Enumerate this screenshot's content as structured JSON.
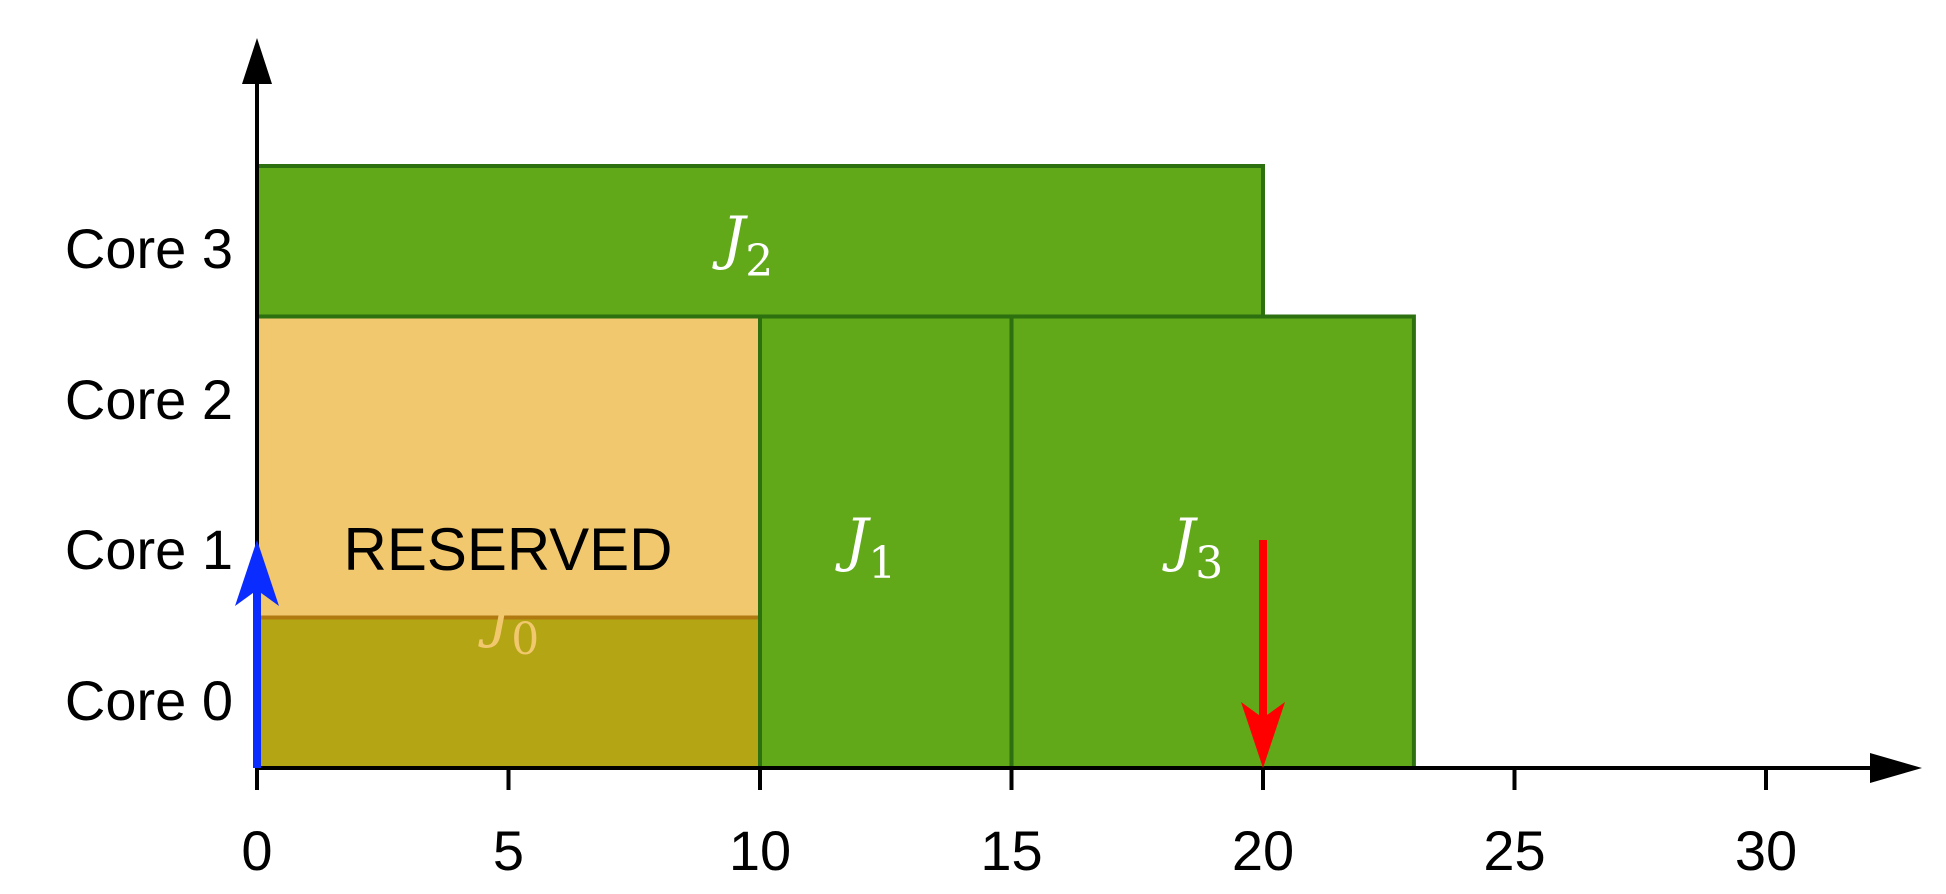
{
  "diagram": {
    "type": "gantt-schedule",
    "time_axis": {
      "min": 0,
      "max": 32,
      "ticks": [
        {
          "value": 0,
          "label": "0"
        },
        {
          "value": 5,
          "label": "5"
        },
        {
          "value": 10,
          "label": "10"
        },
        {
          "value": 15,
          "label": "15"
        },
        {
          "value": 20,
          "label": "20"
        },
        {
          "value": 25,
          "label": "25"
        },
        {
          "value": 30,
          "label": "30"
        }
      ]
    },
    "cores": [
      {
        "index": 0,
        "label": "Core 0"
      },
      {
        "index": 1,
        "label": "Core 1"
      },
      {
        "index": 2,
        "label": "Core 2"
      },
      {
        "index": 3,
        "label": "Core 3"
      }
    ],
    "reserved": {
      "label": "RESERVED",
      "start": 0,
      "end": 10,
      "core_start": 1,
      "core_end": 2,
      "fill": "#f2c86e",
      "stroke": "#b07a10"
    },
    "jobs": [
      {
        "name": "J",
        "subscript": "0",
        "start": 0,
        "end": 10,
        "core_start": 0,
        "core_end": 1,
        "fill": "#b3a513",
        "stroke": "#9a7a10",
        "text_color": "#f2c86e"
      },
      {
        "name": "J",
        "subscript": "1",
        "start": 10,
        "end": 15,
        "core_start": 0,
        "core_end": 2,
        "fill": "#61a918",
        "stroke": "#2c7010",
        "text_color": "#ffffff"
      },
      {
        "name": "J",
        "subscript": "2",
        "start": 0,
        "end": 20,
        "core_start": 3,
        "core_end": 3,
        "fill": "#61a918",
        "stroke": "#2c7010",
        "text_color": "#ffffff"
      },
      {
        "name": "J",
        "subscript": "3",
        "start": 15,
        "end": 23,
        "core_start": 0,
        "core_end": 2,
        "fill": "#61a918",
        "stroke": "#2c7010",
        "text_color": "#ffffff"
      }
    ],
    "markers": [
      {
        "kind": "release",
        "direction": "up",
        "time": 0,
        "color": "#0a2cff"
      },
      {
        "kind": "deadline",
        "direction": "down",
        "time": 20,
        "color": "#ff0000"
      }
    ]
  }
}
